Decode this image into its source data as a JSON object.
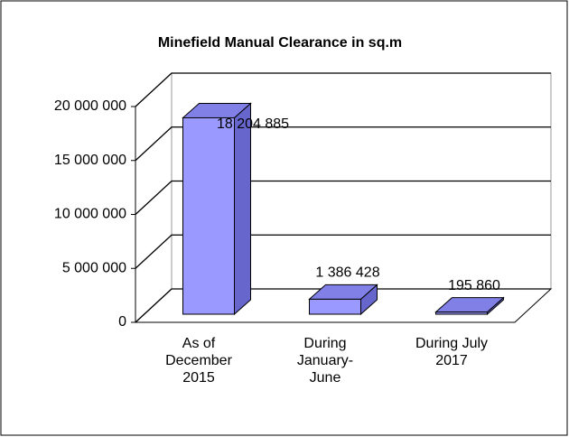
{
  "chart_data": {
    "type": "bar3d",
    "title": "Minefield Manual Clearance in sq.m",
    "categories": [
      "As of December 2015",
      "During January-June",
      "During July 2017"
    ],
    "values": [
      18204885,
      1386428,
      195860
    ],
    "value_labels": [
      "18 204 885",
      "1 386 428",
      "195 860"
    ],
    "color": "#9999ff",
    "ylim": [
      0,
      20000000
    ],
    "yticks": [
      0,
      {
        "value": 5000000,
        "label": "5 000 000"
      },
      {
        "value": 10000000,
        "label": "10 000 000"
      },
      {
        "value": 15000000,
        "label": "15 000 000"
      },
      {
        "value": 20000000,
        "label": "20 000 000"
      }
    ],
    "grid": true
  }
}
